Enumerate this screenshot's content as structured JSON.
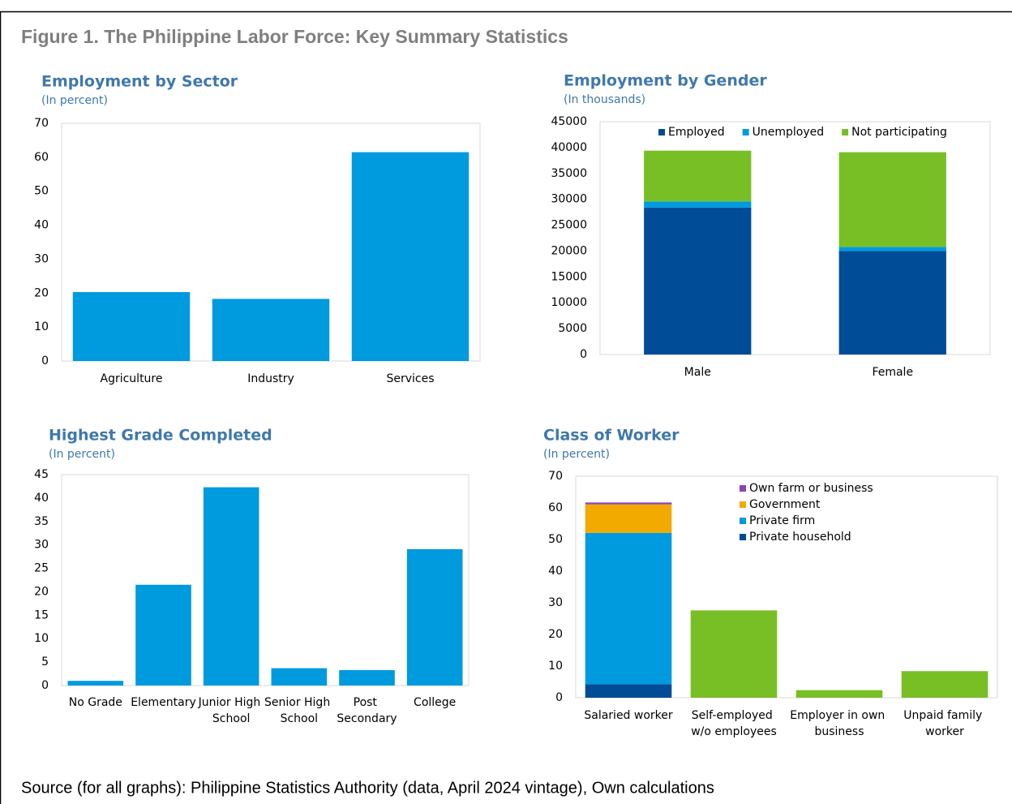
{
  "title": "Figure 1. The Philippine Labor Force: Key Summary Statistics",
  "source": "Source (for all graphs): Philippine Statistics Authority (data, April 2024 vintage), Own calculations",
  "chart_data": [
    {
      "type": "bar",
      "title": "Employment by Sector",
      "subtitle": "(In percent)",
      "categories": [
        "Agriculture",
        "Industry",
        "Services"
      ],
      "series": [
        {
          "color": "#009ade",
          "values": [
            20.3,
            18.3,
            61.5
          ]
        }
      ],
      "ylim": [
        0,
        70
      ],
      "yticks": [
        0,
        10,
        20,
        30,
        40,
        50,
        60,
        70
      ]
    },
    {
      "type": "stacked_bar",
      "title": "Employment by Gender",
      "subtitle": "(In thousands)",
      "categories": [
        "Male",
        "Female"
      ],
      "series": [
        {
          "name": "Employed",
          "color": "#004c97",
          "values": [
            28400,
            20000
          ]
        },
        {
          "name": "Unemployed",
          "color": "#009ade",
          "values": [
            1200,
            800
          ]
        },
        {
          "name": "Not participating",
          "color": "#78bf26",
          "values": [
            9800,
            18300
          ]
        }
      ],
      "ylim": [
        0,
        45000
      ],
      "yticks": [
        0,
        5000,
        10000,
        15000,
        20000,
        25000,
        30000,
        35000,
        40000,
        45000
      ],
      "legend": "top"
    },
    {
      "type": "bar",
      "title": "Highest Grade Completed",
      "subtitle": "(In percent)",
      "categories": [
        "No Grade",
        "Elementary",
        "Junior High School",
        "Senior High School",
        "Post Secondary",
        "College"
      ],
      "series": [
        {
          "color": "#009ade",
          "values": [
            1.0,
            21.5,
            42.3,
            3.7,
            3.3,
            29.1
          ]
        }
      ],
      "ylim": [
        0,
        45
      ],
      "yticks": [
        0,
        5,
        10,
        15,
        20,
        25,
        30,
        35,
        40,
        45
      ]
    },
    {
      "type": "stacked_bar",
      "title": "Class of Worker",
      "subtitle": "(In percent)",
      "categories": [
        "Salaried worker",
        "Self-employed w/o employees",
        "Employer in own business",
        "Unpaid family worker"
      ],
      "series": [
        {
          "name": "Private household",
          "color": "#004c97",
          "values": [
            4.3,
            null,
            null,
            null
          ]
        },
        {
          "name": "Private firm",
          "color": "#009ade",
          "values": [
            47.8,
            null,
            null,
            null
          ]
        },
        {
          "name": "Government",
          "color": "#f2a900",
          "values": [
            9.0,
            null,
            null,
            null
          ]
        },
        {
          "name": "Own farm or business",
          "color": "#8e44ad",
          "values": [
            0.6,
            null,
            null,
            null
          ]
        },
        {
          "color": "#78bf26",
          "values": [
            null,
            27.6,
            2.4,
            8.4
          ]
        }
      ],
      "ylim": [
        0,
        70
      ],
      "yticks": [
        0,
        10,
        20,
        30,
        40,
        50,
        60,
        70
      ],
      "legend": "top-right"
    }
  ]
}
